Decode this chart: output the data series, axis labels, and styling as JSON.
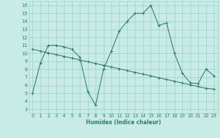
{
  "xlabel": "Humidex (Indice chaleur)",
  "bg_color": "#c8ebe6",
  "grid_color": "#9dd4cb",
  "line_color": "#2d7d6e",
  "xlim": [
    -0.5,
    23.5
  ],
  "ylim": [
    2.5,
    16.5
  ],
  "xticks": [
    0,
    1,
    2,
    3,
    4,
    5,
    6,
    7,
    8,
    9,
    10,
    11,
    12,
    13,
    14,
    15,
    16,
    17,
    18,
    19,
    20,
    21,
    22,
    23
  ],
  "yticks": [
    3,
    4,
    5,
    6,
    7,
    8,
    9,
    10,
    11,
    12,
    13,
    14,
    15,
    16
  ],
  "curve1_x": [
    0,
    1,
    2,
    3,
    4,
    5,
    6,
    7,
    8,
    9,
    10,
    11,
    12,
    13,
    14,
    15,
    16,
    17,
    18,
    19,
    20,
    21,
    22,
    23
  ],
  "curve1_y": [
    5.0,
    8.8,
    11.0,
    11.0,
    10.8,
    10.5,
    9.5,
    5.2,
    3.5,
    8.0,
    10.3,
    12.8,
    14.0,
    15.0,
    15.0,
    16.0,
    13.5,
    13.8,
    10.0,
    7.5,
    6.3,
    6.2,
    8.0,
    7.2
  ],
  "curve2_x": [
    0,
    1,
    2,
    3,
    4,
    5,
    6,
    7,
    8,
    9,
    10,
    11,
    12,
    13,
    14,
    15,
    16,
    17,
    18,
    19,
    20,
    21,
    22,
    23
  ],
  "curve2_y": [
    10.5,
    10.28,
    10.05,
    9.83,
    9.61,
    9.39,
    9.17,
    8.94,
    8.72,
    8.5,
    8.28,
    8.06,
    7.83,
    7.61,
    7.39,
    7.17,
    6.94,
    6.72,
    6.5,
    6.28,
    6.06,
    5.83,
    5.61,
    5.5
  ]
}
